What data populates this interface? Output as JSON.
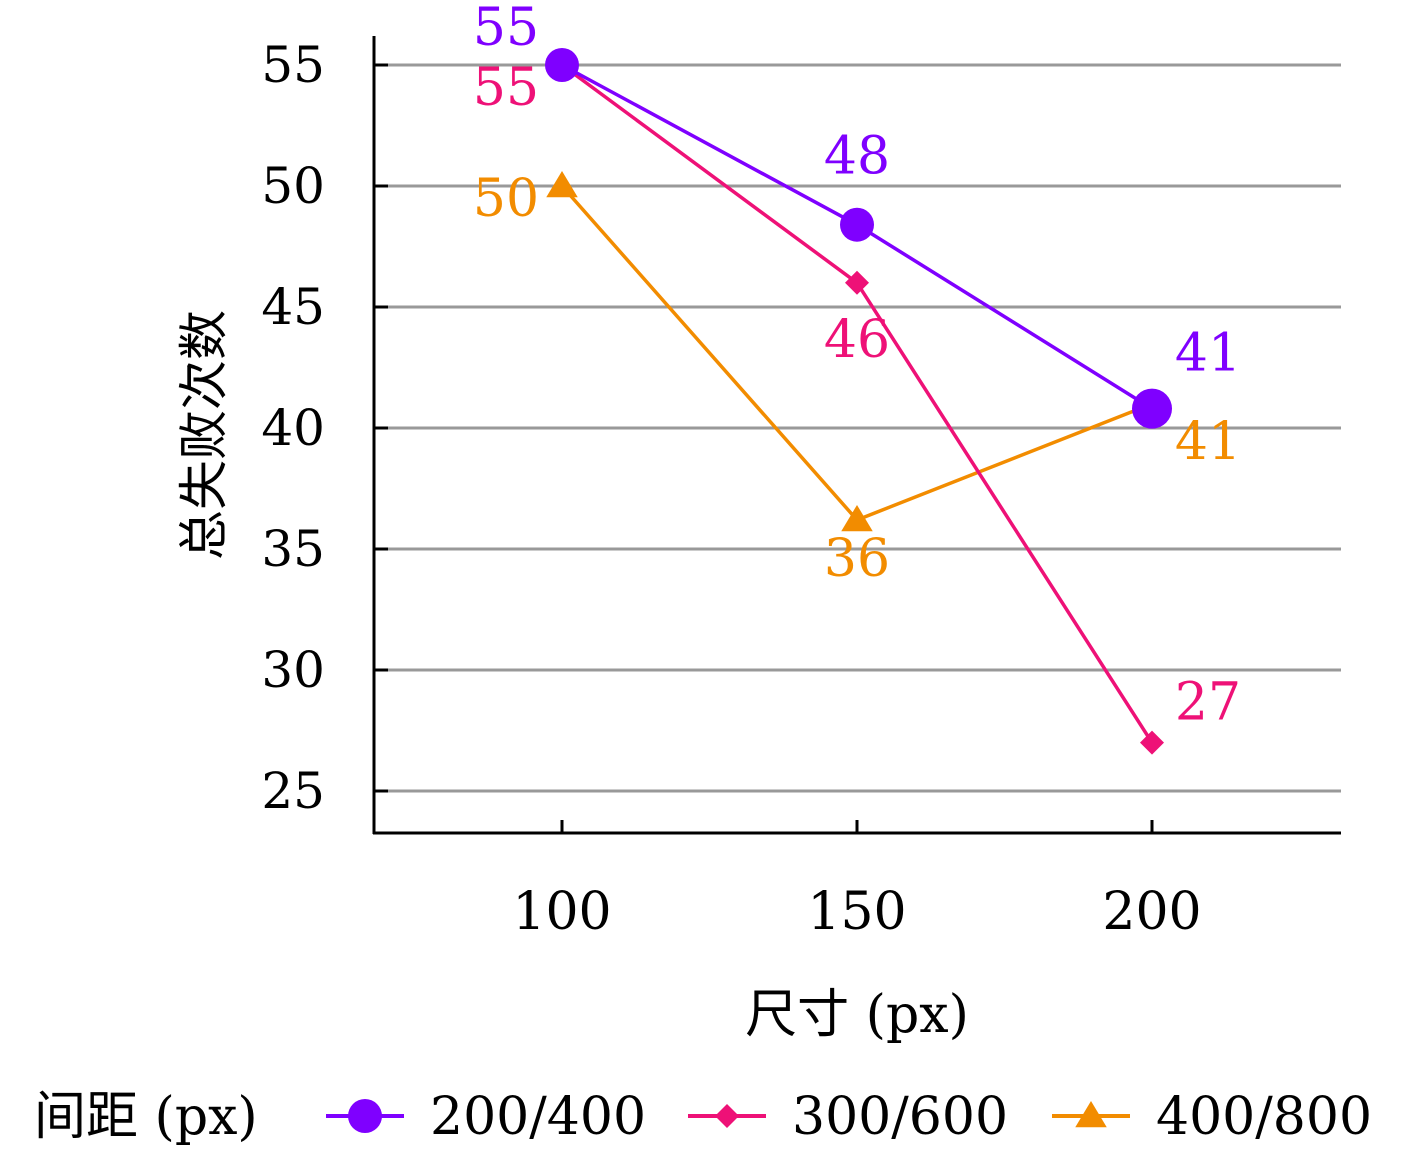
{
  "chart_data": {
    "type": "line",
    "xlabel": "尺寸 (px)",
    "ylabel": "总失败次数",
    "x": [
      100,
      150,
      200
    ],
    "ylim": [
      23,
      56
    ],
    "yticks": [
      25,
      30,
      35,
      40,
      45,
      50,
      55
    ],
    "grid": "horizontal",
    "legend": {
      "title": "间距 (px)",
      "placement": "bottom"
    },
    "series": [
      {
        "name": "200/400",
        "values": [
          55,
          48.4,
          40.8
        ],
        "labels": [
          "55",
          "48",
          "41"
        ],
        "color": "#7F00FF",
        "marker": "circle"
      },
      {
        "name": "300/600",
        "values": [
          55,
          46,
          27
        ],
        "labels": [
          "55",
          "46",
          "27"
        ],
        "color": "#EE1177",
        "marker": "diamond"
      },
      {
        "name": "400/800",
        "values": [
          50,
          36.2,
          41
        ],
        "labels": [
          "50",
          "36",
          "41"
        ],
        "color": "#F28C00",
        "marker": "triangle"
      }
    ]
  }
}
